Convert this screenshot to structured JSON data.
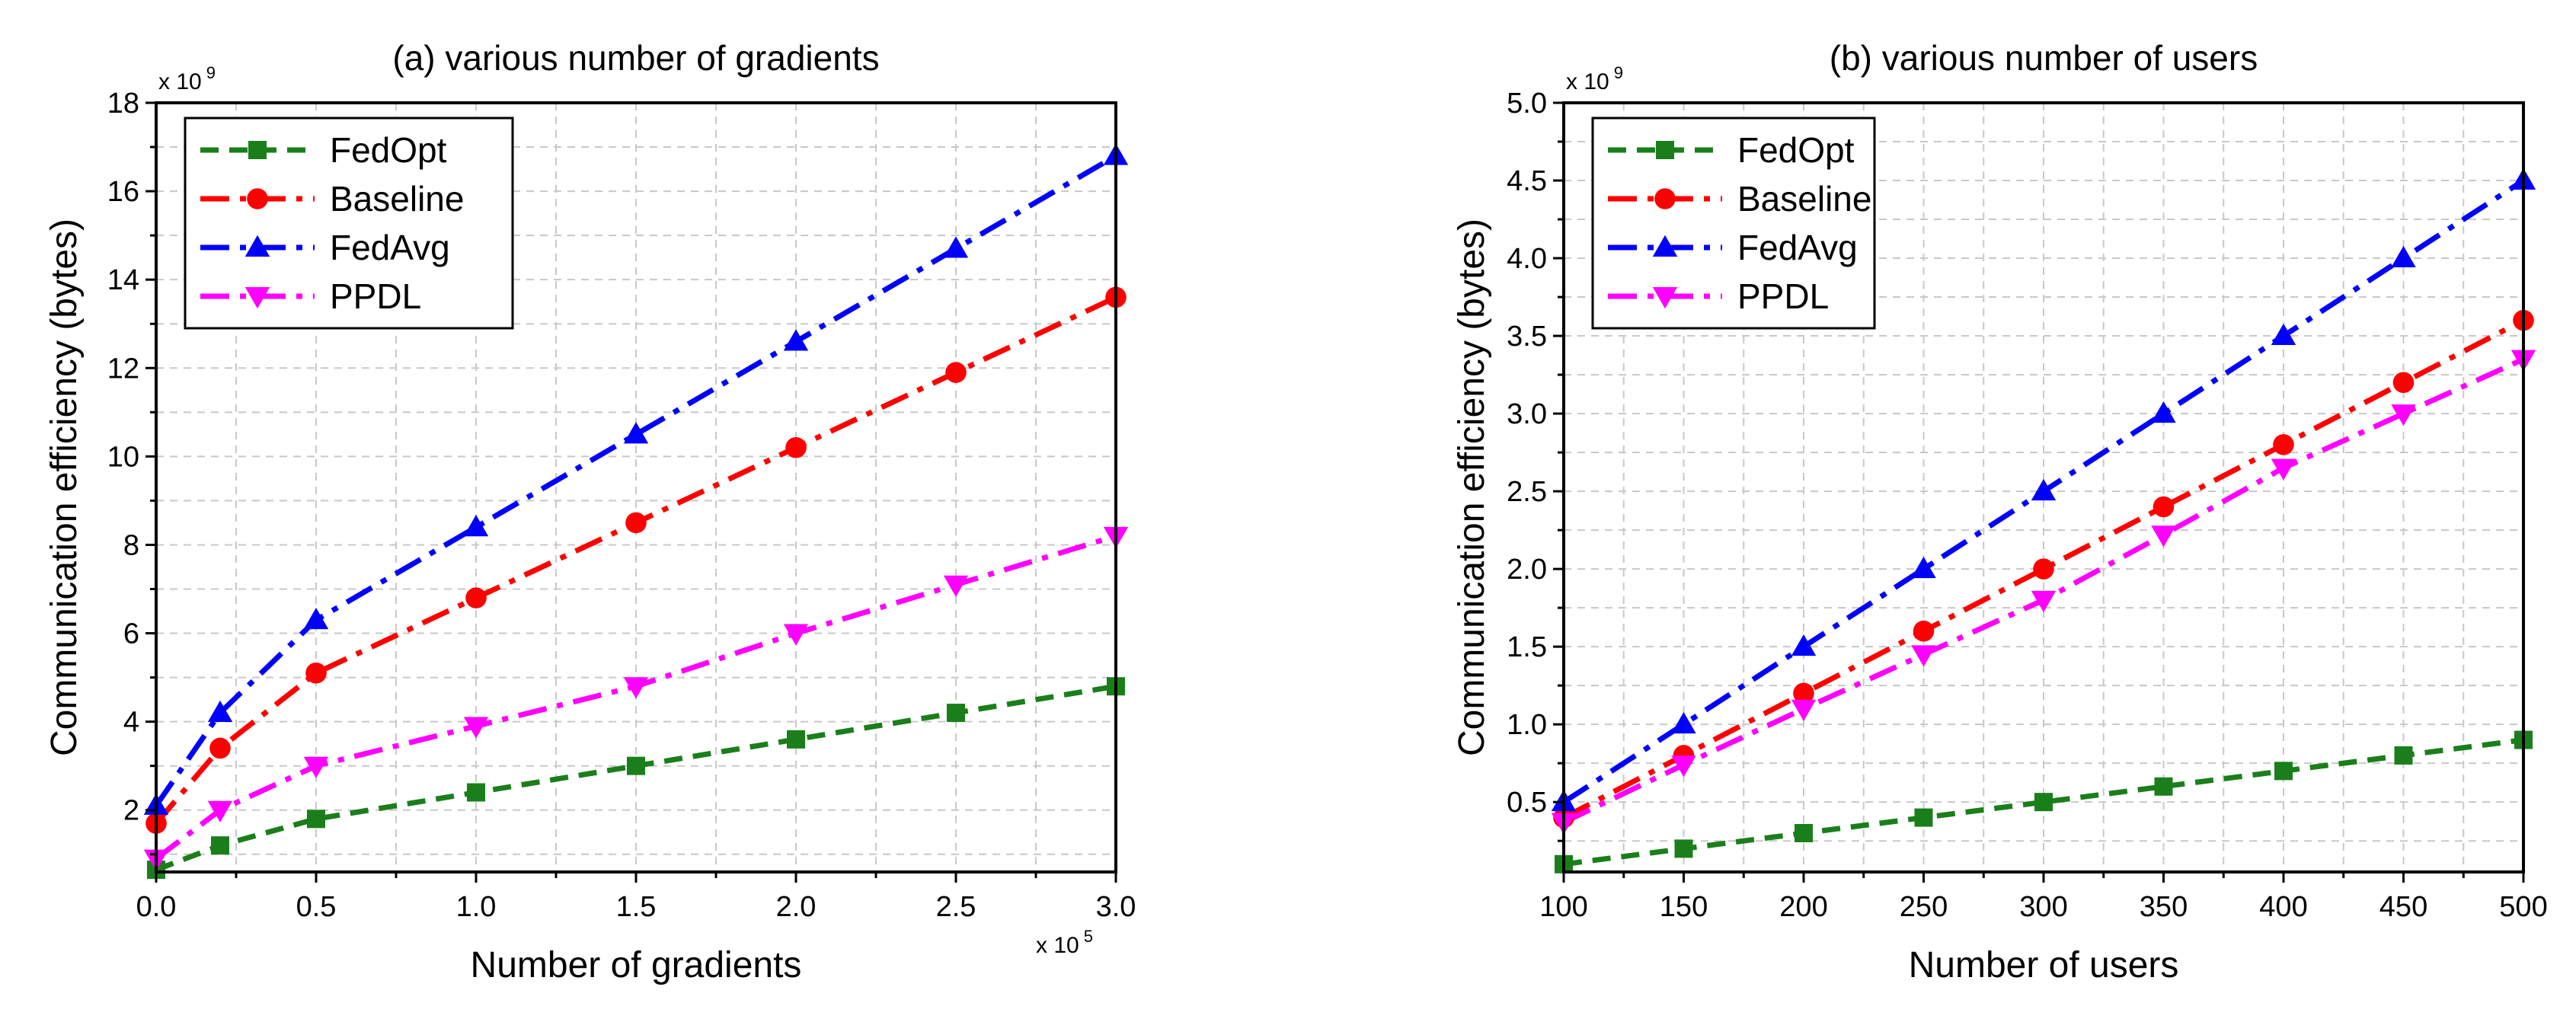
{
  "chart_data": [
    {
      "type": "line",
      "title": "(a) various number of gradients",
      "xlabel": "Number of gradients",
      "ylabel": "Communication efficiency (bytes)",
      "x_multiplier": "x 10",
      "x_exponent": "5",
      "y_multiplier": "x 10",
      "y_exponent": "9",
      "xlim": [
        0,
        3.0
      ],
      "ylim": [
        0.6,
        18
      ],
      "xticks": [
        0,
        0.5,
        1.0,
        1.5,
        2.0,
        2.5,
        3.0
      ],
      "xtick_labels": [
        "0.0",
        "0.5",
        "1.0",
        "1.5",
        "2.0",
        "2.5",
        "3.0"
      ],
      "xminor": [
        0.25,
        0.75,
        1.25,
        1.75,
        2.25,
        2.75
      ],
      "yticks": [
        2,
        4,
        6,
        8,
        10,
        12,
        14,
        16,
        18
      ],
      "ytick_labels": [
        "2",
        "4",
        "6",
        "8",
        "10",
        "12",
        "14",
        "16",
        "18"
      ],
      "yminor": [
        1,
        3,
        5,
        7,
        9,
        11,
        13,
        15,
        17
      ],
      "grid": true,
      "legend_position": "top-left",
      "x": [
        0,
        0.2,
        0.5,
        1.0,
        1.5,
        2.0,
        2.5,
        3.0
      ],
      "series": [
        {
          "name": "FedOpt",
          "color": "#1a7f1a",
          "marker": "square",
          "dash": "dashed",
          "x": [
            0,
            0.2,
            0.5,
            1.0,
            1.5,
            2.0,
            2.5,
            3.0
          ],
          "values": [
            0.65,
            1.2,
            1.8,
            2.4,
            3.0,
            3.6,
            4.2,
            4.8
          ]
        },
        {
          "name": "Baseline",
          "color": "#ff0000",
          "marker": "circle",
          "dash": "dashdot",
          "x": [
            0,
            0.2,
            0.5,
            1.0,
            1.5,
            2.0,
            2.5,
            3.0
          ],
          "values": [
            1.7,
            3.4,
            5.1,
            6.8,
            8.5,
            10.2,
            11.9,
            13.6
          ]
        },
        {
          "name": "FedAvg",
          "color": "#0000ff",
          "marker": "triangle-up",
          "dash": "dashdot",
          "x": [
            0,
            0.2,
            0.5,
            1.0,
            1.5,
            2.0,
            2.5,
            3.0
          ],
          "values": [
            2.1,
            4.2,
            6.3,
            8.4,
            10.5,
            12.6,
            14.7,
            16.8
          ]
        },
        {
          "name": "PPDL",
          "color": "#ff00ff",
          "marker": "triangle-down",
          "dash": "dashdot",
          "x": [
            0,
            0.2,
            0.5,
            1.0,
            1.5,
            2.0,
            2.5,
            3.0
          ],
          "values": [
            0.9,
            2.0,
            3.0,
            3.9,
            4.8,
            6.0,
            7.1,
            8.2
          ]
        }
      ]
    },
    {
      "type": "line",
      "title": "(b) various number of users",
      "xlabel": "Number of users",
      "ylabel": "Communication efficiency (bytes)",
      "y_multiplier": "x 10",
      "y_exponent": "9",
      "xlim": [
        100,
        500
      ],
      "ylim": [
        0.05,
        5.0
      ],
      "xticks": [
        100,
        150,
        200,
        250,
        300,
        350,
        400,
        450,
        500
      ],
      "xtick_labels": [
        "100",
        "150",
        "200",
        "250",
        "300",
        "350",
        "400",
        "450",
        "500"
      ],
      "xminor": [
        125,
        175,
        225,
        275,
        325,
        375,
        425,
        475
      ],
      "yticks": [
        0.5,
        1.0,
        1.5,
        2.0,
        2.5,
        3.0,
        3.5,
        4.0,
        4.5,
        5.0
      ],
      "ytick_labels": [
        "0.5",
        "1.0",
        "1.5",
        "2.0",
        "2.5",
        "3.0",
        "3.5",
        "4.0",
        "4.5",
        "5.0"
      ],
      "yminor": [
        0.25,
        0.75,
        1.25,
        1.75,
        2.25,
        2.75,
        3.25,
        3.75,
        4.25,
        4.75
      ],
      "grid": true,
      "legend_position": "top-left",
      "series": [
        {
          "name": "FedOpt",
          "color": "#1a7f1a",
          "marker": "square",
          "dash": "dashed",
          "x": [
            100,
            150,
            200,
            250,
            300,
            350,
            400,
            450,
            500
          ],
          "values": [
            0.1,
            0.2,
            0.3,
            0.4,
            0.5,
            0.6,
            0.7,
            0.8,
            0.9
          ]
        },
        {
          "name": "Baseline",
          "color": "#ff0000",
          "marker": "circle",
          "dash": "dashdot",
          "x": [
            100,
            150,
            200,
            250,
            300,
            350,
            400,
            450,
            500
          ],
          "values": [
            0.4,
            0.8,
            1.2,
            1.6,
            2.0,
            2.4,
            2.8,
            3.2,
            3.6
          ]
        },
        {
          "name": "FedAvg",
          "color": "#0000ff",
          "marker": "triangle-up",
          "dash": "dashdot",
          "x": [
            100,
            150,
            200,
            250,
            300,
            350,
            400,
            450,
            500
          ],
          "values": [
            0.5,
            1.0,
            1.5,
            2.0,
            2.5,
            3.0,
            3.5,
            4.0,
            4.5
          ]
        },
        {
          "name": "PPDL",
          "color": "#ff00ff",
          "marker": "triangle-down",
          "dash": "dashdot",
          "x": [
            100,
            150,
            200,
            250,
            300,
            350,
            400,
            450,
            500
          ],
          "values": [
            0.37,
            0.74,
            1.1,
            1.45,
            1.8,
            2.22,
            2.65,
            3.0,
            3.35
          ]
        }
      ]
    }
  ]
}
